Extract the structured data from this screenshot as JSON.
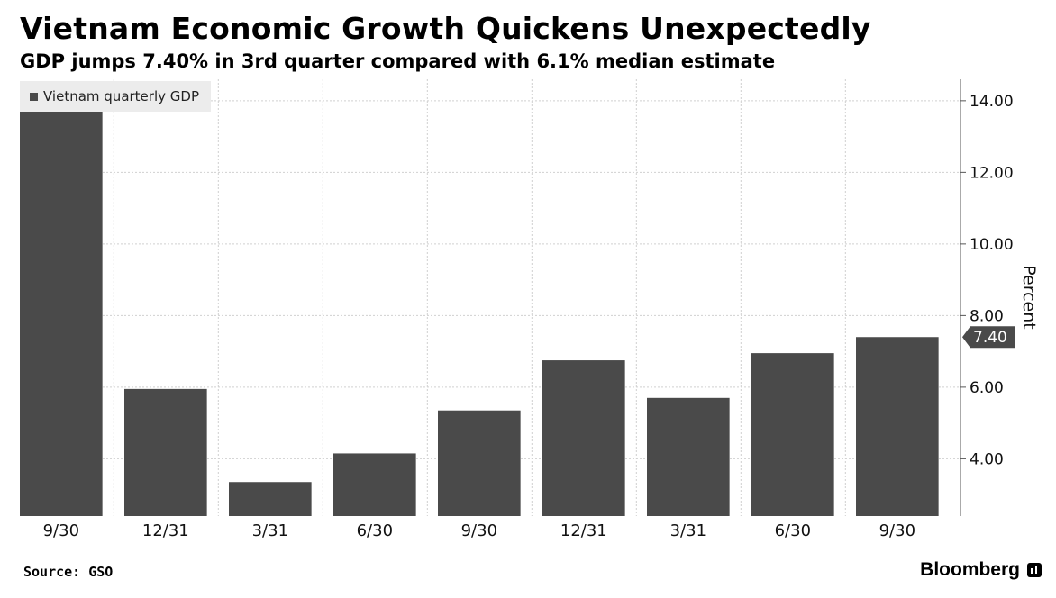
{
  "header": {
    "title": "Vietnam Economic Growth Quickens Unexpectedly",
    "subtitle": "GDP jumps 7.40% in 3rd quarter compared with 6.1% median estimate"
  },
  "footer": {
    "source": "Source: GSO",
    "brand": "Bloomberg"
  },
  "chart_data": {
    "type": "bar",
    "categories": [
      "9/30",
      "12/31",
      "3/31",
      "6/30",
      "9/30",
      "12/31",
      "3/31",
      "6/30",
      "9/30"
    ],
    "series": [
      {
        "name": "Vietnam quarterly GDP",
        "values": [
          13.7,
          5.95,
          3.35,
          4.15,
          5.35,
          6.75,
          5.7,
          6.95,
          7.4
        ]
      }
    ],
    "ylabel": "Percent",
    "ylim": [
      2.4,
      14.6
    ],
    "yticks": [
      4.0,
      6.0,
      8.0,
      10.0,
      12.0,
      14.0
    ],
    "ytick_labels": [
      "4.00",
      "6.00",
      "8.00",
      "10.00",
      "12.00",
      "14.00"
    ],
    "last_value_label": "7.40",
    "y_axis_side": "right",
    "legend_position": "top-left",
    "grid": true,
    "colors": {
      "bar": "#4a4a4a",
      "grid": "#d0d0d0"
    }
  }
}
